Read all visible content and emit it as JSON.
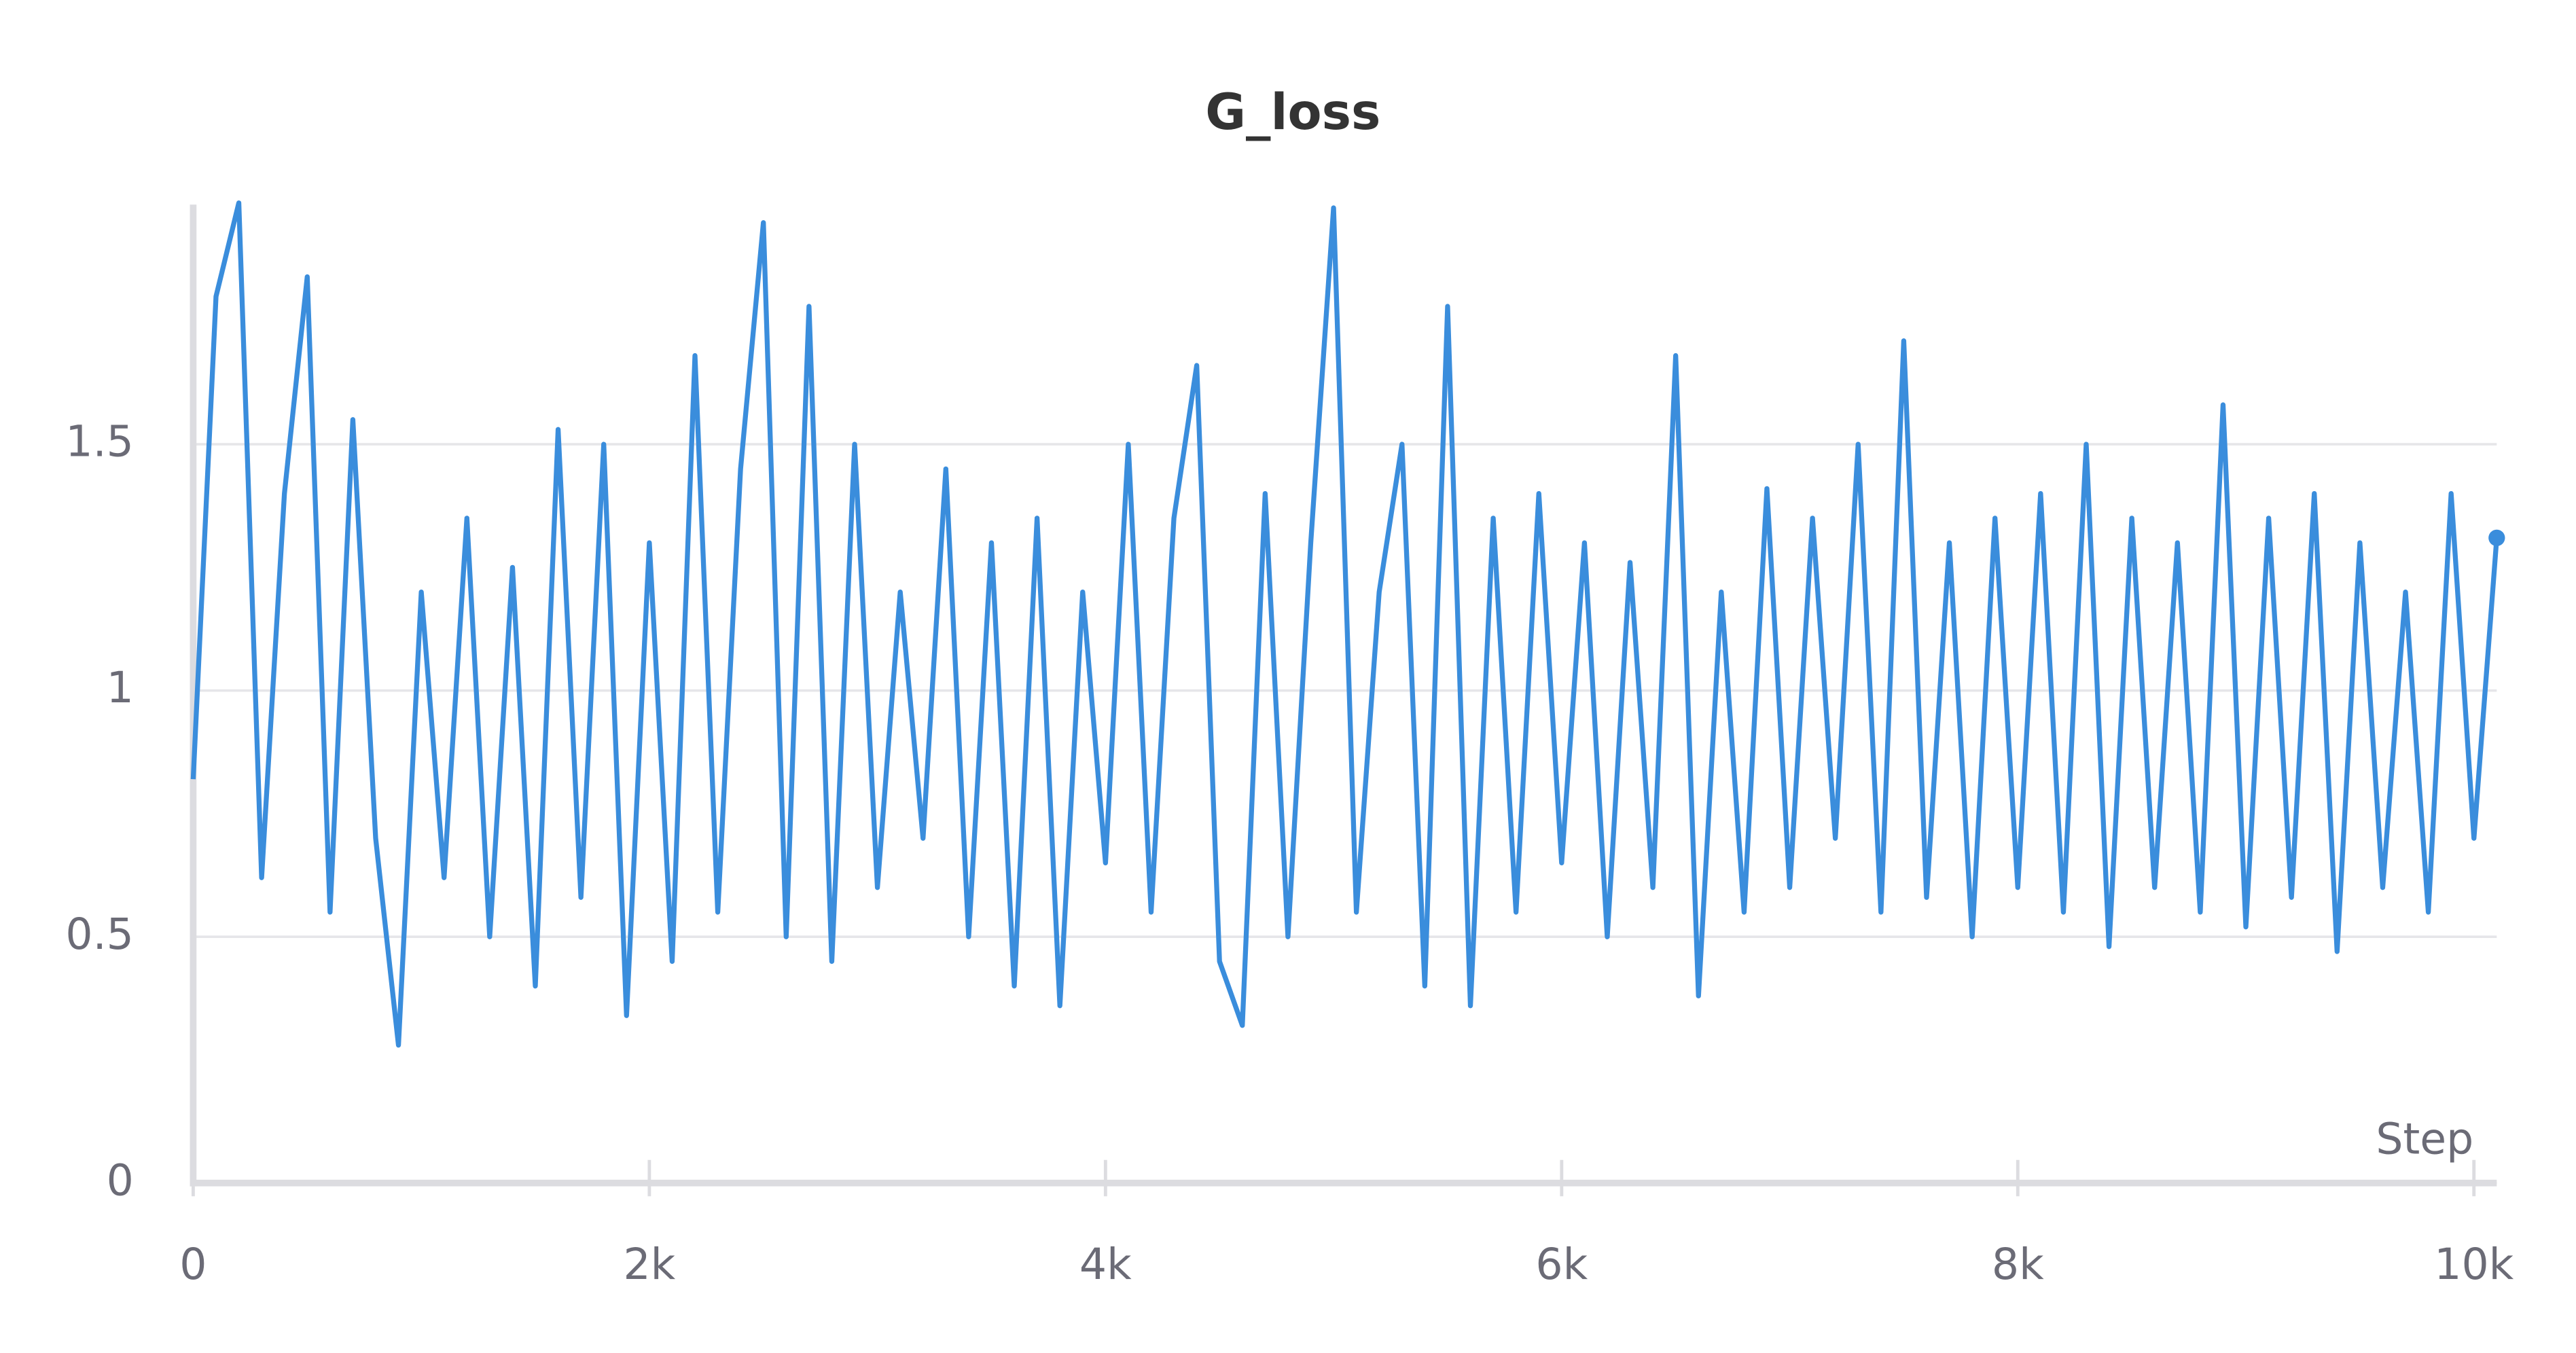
{
  "chart_data": {
    "type": "line",
    "title": "G_loss",
    "x_label": "Step",
    "x": [
      0,
      100,
      200,
      300,
      400,
      500,
      600,
      700,
      800,
      900,
      1000,
      1100,
      1200,
      1300,
      1400,
      1500,
      1600,
      1700,
      1800,
      1900,
      2000,
      2100,
      2200,
      2300,
      2400,
      2500,
      2600,
      2700,
      2800,
      2900,
      3000,
      3100,
      3200,
      3300,
      3400,
      3500,
      3600,
      3700,
      3800,
      3900,
      4000,
      4100,
      4200,
      4300,
      4400,
      4500,
      4600,
      4700,
      4800,
      4900,
      5000,
      5100,
      5200,
      5300,
      5400,
      5500,
      5600,
      5700,
      5800,
      5900,
      6000,
      6100,
      6200,
      6300,
      6400,
      6500,
      6600,
      6700,
      6800,
      6900,
      7000,
      7100,
      7200,
      7300,
      7400,
      7500,
      7600,
      7700,
      7800,
      7900,
      8000,
      8100,
      8200,
      8300,
      8400,
      8500,
      8600,
      8700,
      8800,
      8900,
      9000,
      9100,
      9200,
      9300,
      9400,
      9500,
      9600,
      9700,
      9800,
      9900,
      10000,
      10100
    ],
    "series": [
      {
        "name": "G_loss",
        "color": "#3a8ddc",
        "values": [
          0.82,
          1.8,
          1.99,
          0.62,
          1.4,
          1.84,
          0.55,
          1.55,
          0.7,
          0.28,
          1.2,
          0.62,
          1.35,
          0.5,
          1.25,
          0.4,
          1.53,
          0.58,
          1.5,
          0.34,
          1.3,
          0.45,
          1.68,
          0.55,
          1.45,
          1.95,
          0.5,
          1.78,
          0.45,
          1.5,
          0.6,
          1.2,
          0.7,
          1.45,
          0.5,
          1.3,
          0.4,
          1.35,
          0.36,
          1.2,
          0.65,
          1.5,
          0.55,
          1.35,
          1.66,
          0.45,
          0.32,
          1.4,
          0.5,
          1.3,
          1.98,
          0.55,
          1.2,
          1.5,
          0.4,
          1.78,
          0.36,
          1.35,
          0.55,
          1.4,
          0.65,
          1.3,
          0.5,
          1.26,
          0.6,
          1.68,
          0.38,
          1.2,
          0.55,
          1.41,
          0.6,
          1.35,
          0.7,
          1.5,
          0.55,
          1.71,
          0.58,
          1.3,
          0.5,
          1.35,
          0.6,
          1.4,
          0.55,
          1.5,
          0.48,
          1.35,
          0.6,
          1.3,
          0.55,
          1.58,
          0.52,
          1.35,
          0.58,
          1.4,
          0.47,
          1.3,
          0.6,
          1.2,
          0.55,
          1.4,
          0.7,
          1.31
        ]
      }
    ],
    "xlim": [
      0,
      10100
    ],
    "ylim": [
      0,
      2
    ],
    "xticks": [
      {
        "value": 0,
        "label": "0"
      },
      {
        "value": 2000,
        "label": "2k"
      },
      {
        "value": 4000,
        "label": "4k"
      },
      {
        "value": 6000,
        "label": "6k"
      },
      {
        "value": 8000,
        "label": "8k"
      },
      {
        "value": 10000,
        "label": "10k"
      }
    ],
    "yticks": [
      0,
      0.5,
      1,
      1.5
    ],
    "grid": true
  }
}
